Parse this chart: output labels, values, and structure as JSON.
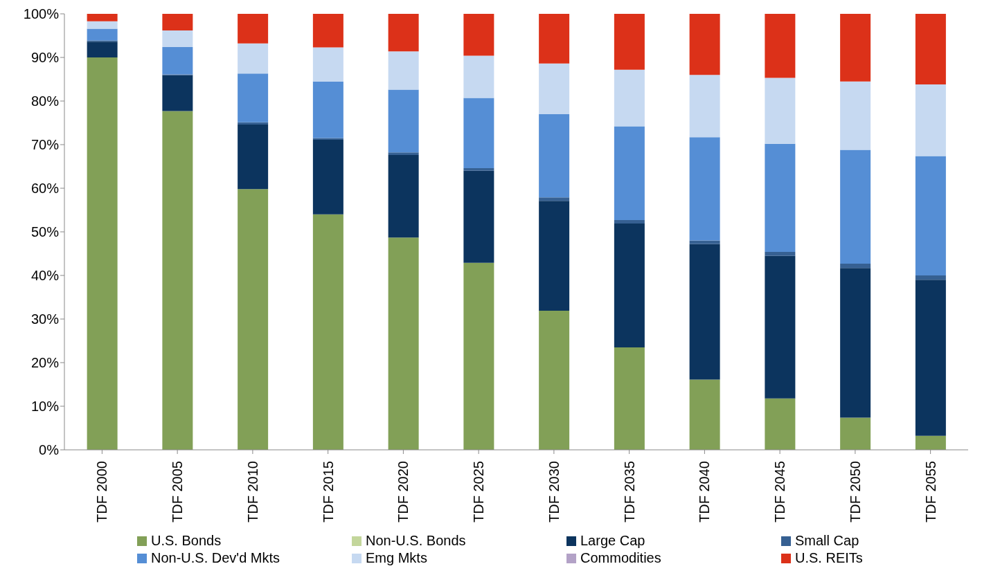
{
  "chart_data": {
    "type": "bar",
    "stacked": true,
    "categories": [
      "TDF 2000",
      "TDF 2005",
      "TDF 2010",
      "TDF 2015",
      "TDF 2020",
      "TDF 2025",
      "TDF 2030",
      "TDF 2035",
      "TDF 2040",
      "TDF 2045",
      "TDF 2050",
      "TDF 2055"
    ],
    "series": [
      {
        "name": "U.S. Bonds",
        "color": "#82a057",
        "values": [
          90.0,
          77.7,
          59.8,
          54.0,
          48.7,
          42.9,
          31.9,
          23.5,
          16.1,
          11.8,
          7.4,
          3.2
        ]
      },
      {
        "name": "Non-U.S. Bonds",
        "color": "#c3d69b",
        "values": [
          0,
          0,
          0,
          0,
          0,
          0,
          0,
          0,
          0,
          0,
          0,
          0
        ]
      },
      {
        "name": "Large Cap",
        "color": "#0c345e",
        "values": [
          3.6,
          8.2,
          14.8,
          17.1,
          18.9,
          21.1,
          25.2,
          28.4,
          31.1,
          32.7,
          34.3,
          35.8
        ]
      },
      {
        "name": "Small Cap",
        "color": "#366092",
        "values": [
          0.3,
          0.2,
          0.5,
          0.4,
          0.6,
          0.6,
          0.8,
          0.8,
          0.8,
          0.9,
          1.0,
          1.0
        ]
      },
      {
        "name": "Non-U.S. Dev'd Mkts",
        "color": "#558ed5",
        "values": [
          2.7,
          6.3,
          11.2,
          13.0,
          14.4,
          16.1,
          19.1,
          21.5,
          23.7,
          24.8,
          26.1,
          27.4
        ]
      },
      {
        "name": "Emg Mkts",
        "color": "#c6d9f1",
        "values": [
          1.7,
          3.8,
          6.9,
          7.8,
          8.8,
          9.7,
          11.6,
          13.0,
          14.3,
          15.1,
          15.7,
          16.4
        ]
      },
      {
        "name": "Commodities",
        "color": "#b3a2c7",
        "values": [
          0,
          0,
          0,
          0,
          0,
          0,
          0,
          0,
          0,
          0,
          0,
          0
        ]
      },
      {
        "name": "U.S. REITs",
        "color": "#dc3119",
        "values": [
          1.7,
          3.8,
          6.8,
          7.7,
          8.6,
          9.6,
          11.4,
          12.8,
          14.0,
          14.7,
          15.5,
          16.2
        ]
      }
    ],
    "ylim": [
      0,
      100
    ],
    "yticks": [
      {
        "value": 0,
        "label": "0%"
      },
      {
        "value": 10,
        "label": "10%"
      },
      {
        "value": 20,
        "label": "20%"
      },
      {
        "value": 30,
        "label": "30%"
      },
      {
        "value": 40,
        "label": "40%"
      },
      {
        "value": 50,
        "label": "50%"
      },
      {
        "value": 60,
        "label": "60%"
      },
      {
        "value": 70,
        "label": "70%"
      },
      {
        "value": 80,
        "label": "80%"
      },
      {
        "value": 90,
        "label": "90%"
      },
      {
        "value": 100,
        "label": "100%"
      }
    ],
    "grid": false,
    "legend": "bottom"
  }
}
